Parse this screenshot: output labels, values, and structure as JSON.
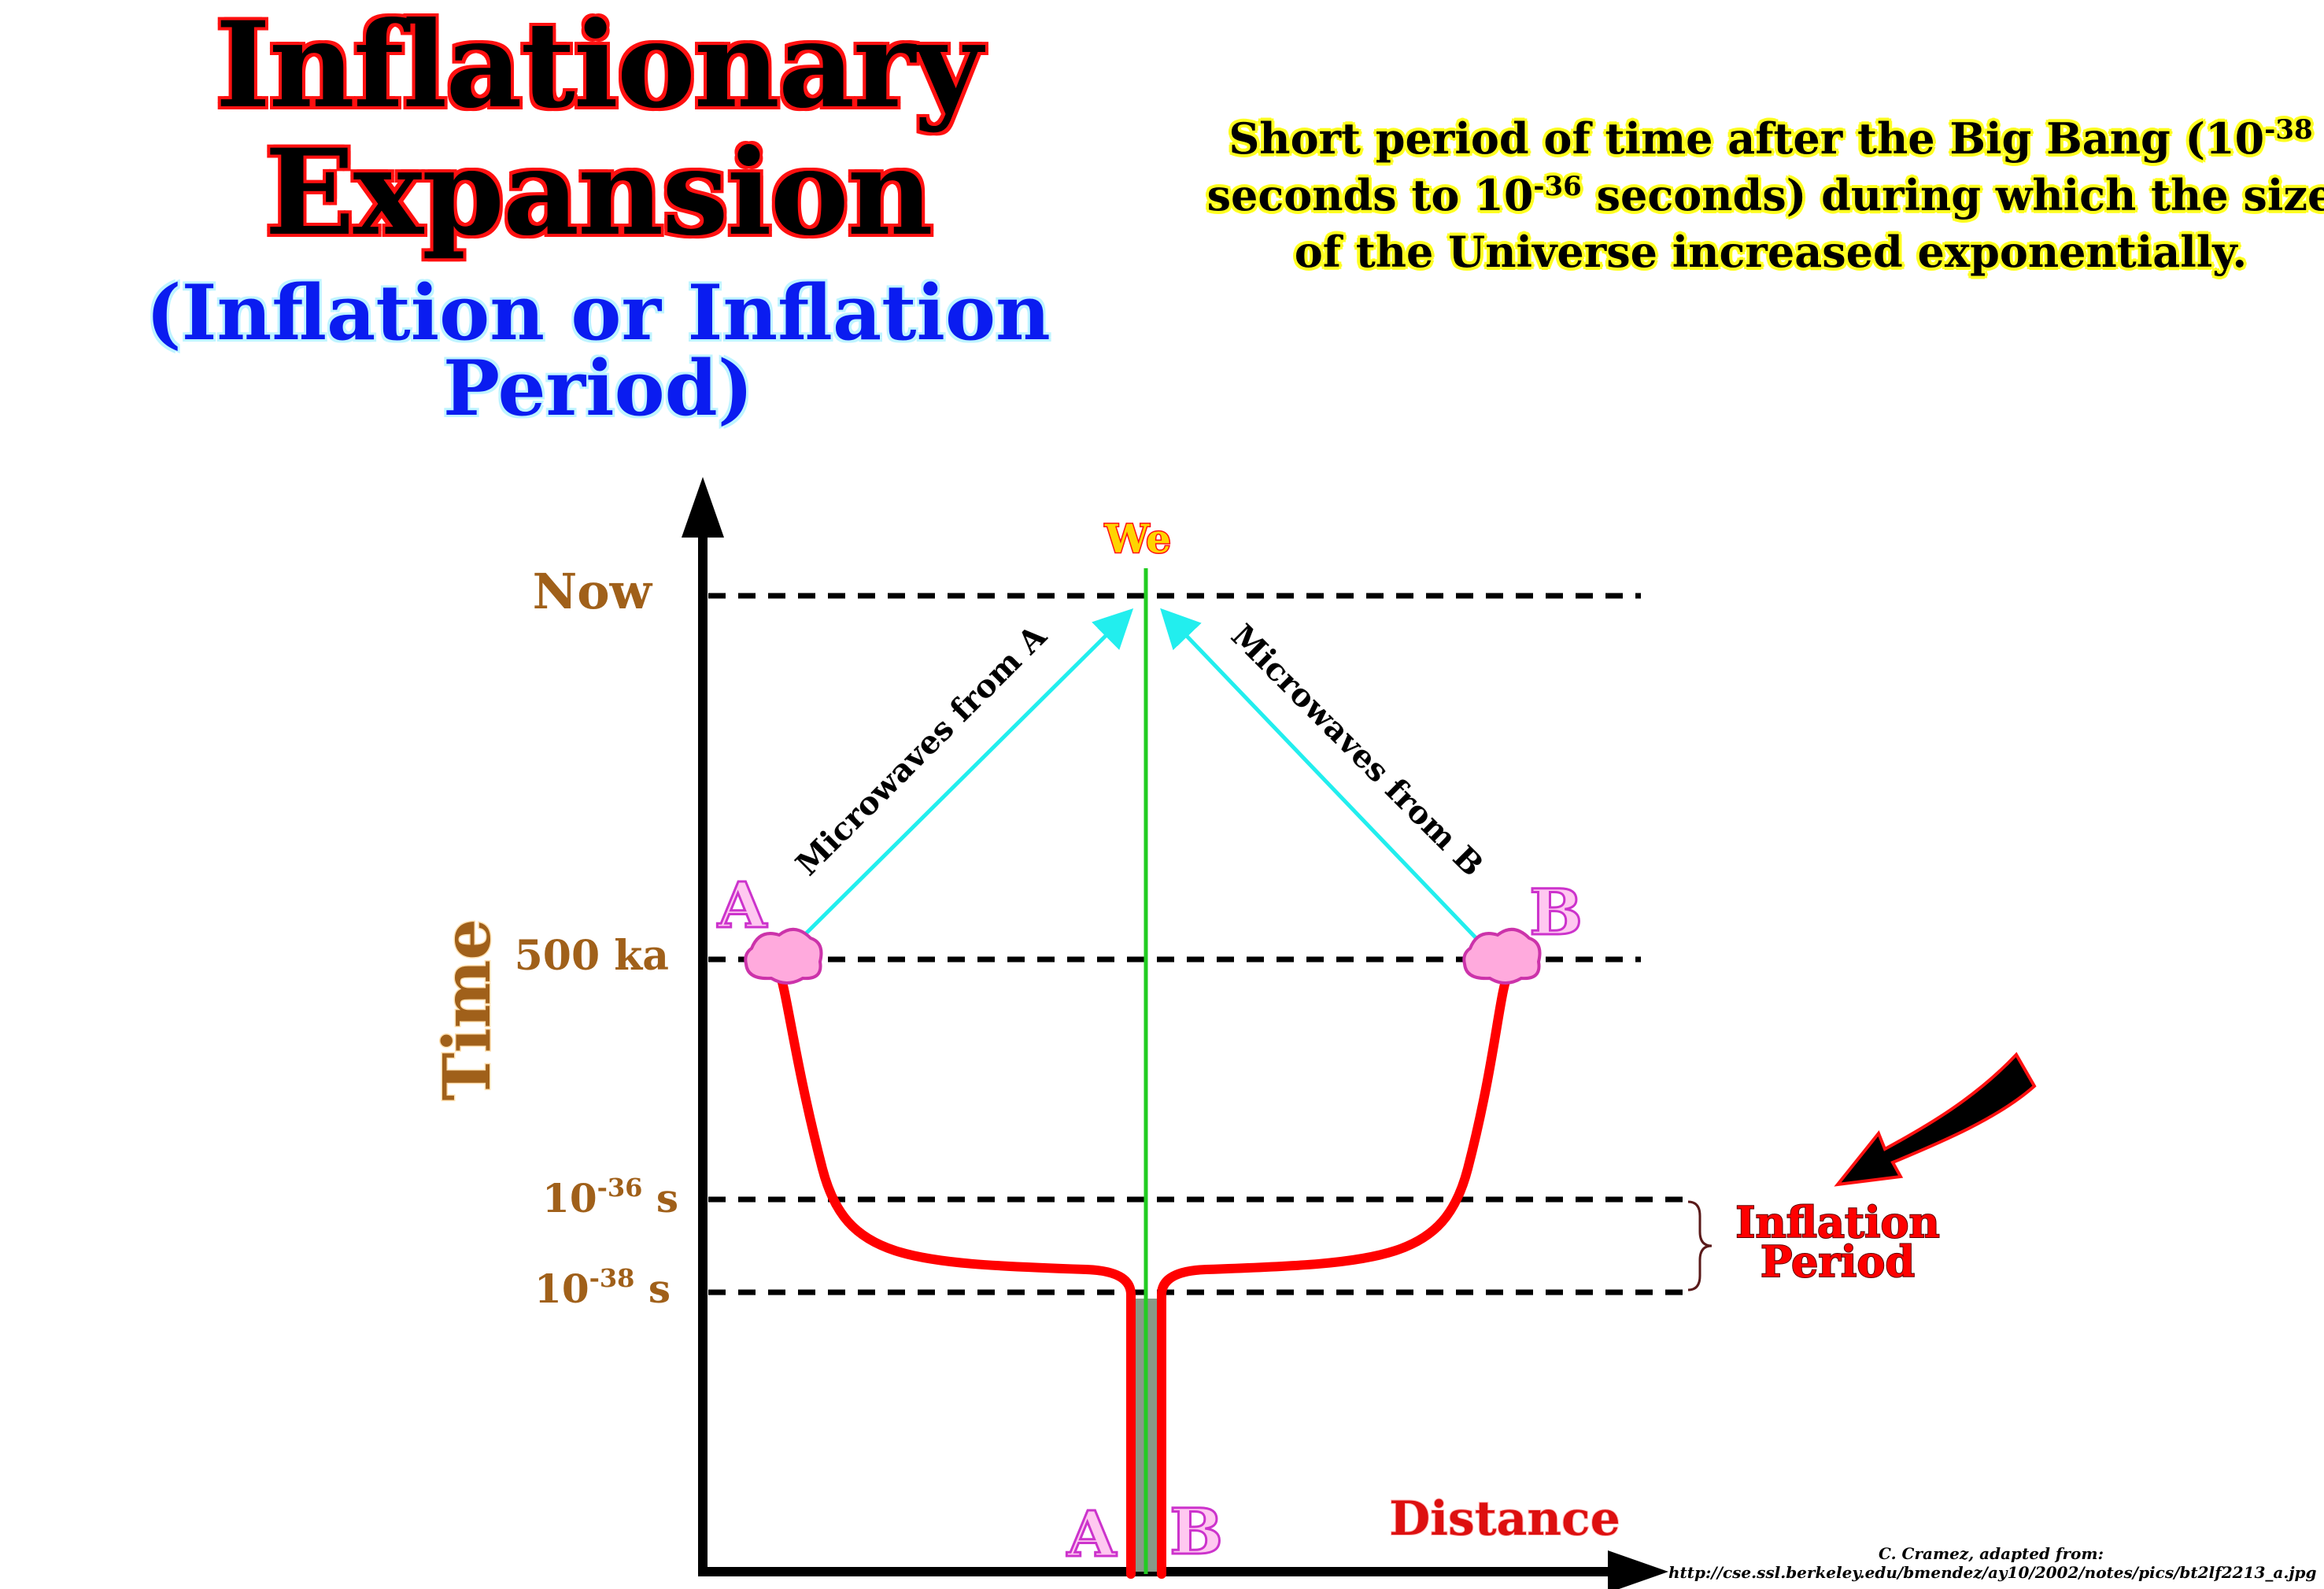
{
  "title_line1": "Inflationary",
  "title_line2": "Expansion",
  "subtitle": "(Inflation or Inflation Period)",
  "definition": {
    "part1": "Short period of time after the Big Bang (10",
    "exp1": "-38",
    "part2": "seconds to 10",
    "exp2": "-36",
    "part3": " seconds) during which the size of the Universe increased exponentially."
  },
  "diagram": {
    "y_axis_label": "Time",
    "x_axis_label": "Distance",
    "levels": {
      "now": "Now",
      "ka500": "500 ka",
      "t36_base": "10",
      "t36_exp": "-36",
      "t36_unit": " s",
      "t38_base": "10",
      "t38_exp": "-38",
      "t38_unit": " s"
    },
    "observer_label": "We",
    "point_a": "A",
    "point_b": "B",
    "ray_a_label": "Microwaves from A",
    "ray_b_label": "Microwaves from B",
    "inflation_label_line1": "Inflation",
    "inflation_label_line2": "Period"
  },
  "colors": {
    "worldline": "#ff0000",
    "observer_line": "#22cc22",
    "rays": "#22eeee",
    "level_text": "#a0601a",
    "blob_fill": "#ffaadd",
    "blob_stroke": "#cc33aa"
  },
  "credit": {
    "line1": "C. Cramez, adapted from:",
    "line2": "http://cse.ssl.berkeley.edu/bmendez/ay10/2002/notes/pics/bt2lf2213_a.jpg"
  }
}
